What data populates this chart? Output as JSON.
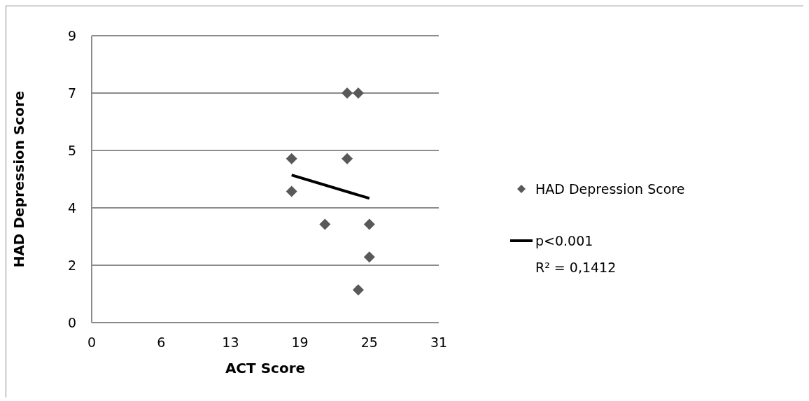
{
  "chart_data": {
    "type": "scatter",
    "xlabel": "ACT Score",
    "ylabel": "HAD Depression Score",
    "xlim": [
      0,
      31.25
    ],
    "xticks": [
      0,
      {
        "value": 6.25,
        "label": "6"
      },
      {
        "value": 12.5,
        "label": "13"
      },
      {
        "value": 18.75,
        "label": "19"
      },
      25,
      {
        "value": 31.25,
        "label": "31"
      }
    ],
    "ylim": [
      0,
      8.75
    ],
    "yticks": [
      0,
      {
        "value": 1.75,
        "label": "2"
      },
      {
        "value": 3.5,
        "label": "4"
      },
      {
        "value": 5.25,
        "label": "5"
      },
      7,
      {
        "value": 8.75,
        "label": "9"
      }
    ],
    "grid": "y",
    "legend": "right",
    "marker": "diamond",
    "series": [
      {
        "name": "HAD Depression Score",
        "color": "#595959",
        "x": [
          18,
          23,
          23,
          24,
          18,
          21,
          25,
          25,
          24
        ],
        "values": [
          5,
          5,
          7,
          7,
          4,
          3,
          3,
          2,
          1
        ]
      },
      {
        "name": "p<0.001",
        "type": "line",
        "marker": "none",
        "color": "#000000",
        "x": [
          18,
          25
        ],
        "values": [
          4.5,
          3.79
        ]
      }
    ],
    "annotations": [
      "R² = 0,1412"
    ]
  }
}
